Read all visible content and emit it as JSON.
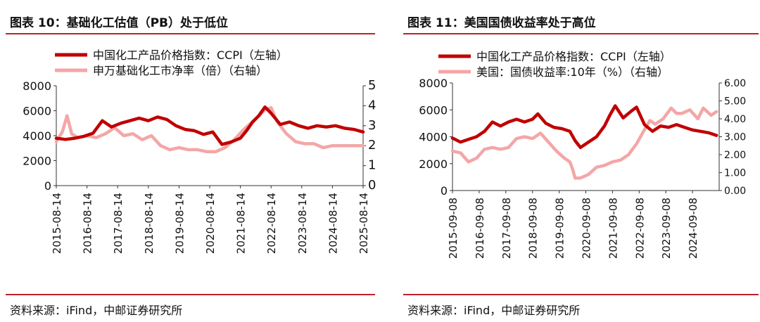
{
  "colors": {
    "accent": "#c0202a",
    "ccpi_line": "#c00000",
    "secondary_line": "#f4a6a6"
  },
  "left": {
    "title": "图表 10：基础化工估值（PB）处于低位",
    "source": "资料来源：iFind，中邮证券研究所"
  },
  "right": {
    "title": "图表 11：美国国债收益率处于高位",
    "source": "资料来源：iFind，中邮证券研究所"
  },
  "chart_data": [
    {
      "type": "line",
      "title": "图表 10：基础化工估值（PB）处于低位",
      "y_left": {
        "range": [
          0,
          8000
        ],
        "ticks": [
          "0",
          "2000",
          "4000",
          "6000",
          "8000"
        ]
      },
      "y_right": {
        "range": [
          0,
          5
        ],
        "ticks": [
          "0",
          "1",
          "2",
          "3",
          "4",
          "5"
        ]
      },
      "x_ticks": [
        "2015-08-14",
        "2016-08-14",
        "2017-08-14",
        "2018-08-14",
        "2019-08-14",
        "2020-08-14",
        "2021-08-14",
        "2022-08-14",
        "2023-08-14",
        "2024-08-14",
        "2025-08-14"
      ],
      "series": [
        {
          "name": "中国化工产品价格指数：CCPI（左轴）",
          "axis": "left",
          "x": [
            0,
            0.3,
            0.6,
            0.9,
            1.2,
            1.5,
            1.8,
            2.1,
            2.4,
            2.7,
            3.0,
            3.3,
            3.6,
            3.9,
            4.2,
            4.5,
            4.8,
            5.1,
            5.4,
            5.7,
            6.0,
            6.2,
            6.4,
            6.6,
            6.8,
            7.0,
            7.3,
            7.6,
            7.9,
            8.2,
            8.5,
            8.8,
            9.1,
            9.4,
            9.7,
            10.0
          ],
          "values": [
            3800,
            3700,
            3800,
            3950,
            4200,
            5200,
            4700,
            5000,
            5200,
            5400,
            5200,
            5500,
            5300,
            4800,
            4500,
            4400,
            4100,
            4300,
            3300,
            3500,
            3800,
            4400,
            5100,
            5600,
            6300,
            5800,
            4900,
            5100,
            4800,
            4600,
            4800,
            4700,
            4800,
            4600,
            4500,
            4300
          ]
        },
        {
          "name": "申万基础化工市净率（倍）（右轴）",
          "axis": "right",
          "x": [
            0,
            0.2,
            0.35,
            0.5,
            0.7,
            1.0,
            1.3,
            1.6,
            1.9,
            2.2,
            2.5,
            2.8,
            3.1,
            3.4,
            3.7,
            4.0,
            4.3,
            4.6,
            4.9,
            5.2,
            5.5,
            5.8,
            6.1,
            6.4,
            6.6,
            6.8,
            7.0,
            7.2,
            7.5,
            7.8,
            8.1,
            8.4,
            8.7,
            9.0,
            9.3,
            9.6,
            10.0
          ],
          "values": [
            2.2,
            2.7,
            3.5,
            2.6,
            2.4,
            2.5,
            2.4,
            2.6,
            2.9,
            2.5,
            2.6,
            2.3,
            2.5,
            2.0,
            1.8,
            1.9,
            1.8,
            1.8,
            1.7,
            1.7,
            1.9,
            2.3,
            2.8,
            3.2,
            3.5,
            3.8,
            3.9,
            3.2,
            2.6,
            2.2,
            2.1,
            2.1,
            1.9,
            2.0,
            2.0,
            2.0,
            2.0
          ]
        }
      ]
    },
    {
      "type": "line",
      "title": "图表 11：美国国债收益率处于高位",
      "y_left": {
        "range": [
          0,
          8000
        ],
        "ticks": [
          "0",
          "2000",
          "4000",
          "6000",
          "8000"
        ]
      },
      "y_right": {
        "range": [
          0,
          6
        ],
        "ticks": [
          "0.00",
          "1.00",
          "2.00",
          "3.00",
          "4.00",
          "5.00",
          "6.00"
        ]
      },
      "x_ticks": [
        "2015-09-08",
        "2016-09-08",
        "2017-09-08",
        "2018-09-08",
        "2019-09-08",
        "2020-09-08",
        "2021-09-08",
        "2022-09-08",
        "2023-09-08",
        "2024-09-08"
      ],
      "series": [
        {
          "name": "中国化工产品价格指数：CCPI（左轴）",
          "axis": "left",
          "x": [
            0,
            0.3,
            0.6,
            0.9,
            1.2,
            1.5,
            1.8,
            2.1,
            2.4,
            2.7,
            3.0,
            3.2,
            3.5,
            3.8,
            4.1,
            4.4,
            4.6,
            4.8,
            5.1,
            5.4,
            5.7,
            5.9,
            6.1,
            6.4,
            6.7,
            6.9,
            7.2,
            7.5,
            7.8,
            8.1,
            8.4,
            8.7,
            9.0,
            9.3,
            9.6,
            9.9
          ],
          "values": [
            3900,
            3600,
            3800,
            4000,
            4400,
            5100,
            4800,
            5100,
            5300,
            5100,
            5300,
            5700,
            5000,
            4700,
            4600,
            4400,
            3700,
            3200,
            3600,
            4000,
            4800,
            5600,
            6300,
            5400,
            5900,
            6200,
            4900,
            4400,
            4800,
            4700,
            4900,
            4700,
            4500,
            4400,
            4300,
            4100
          ]
        },
        {
          "name": "美国：国债收益率:10年（%）（右轴）",
          "axis": "right",
          "x": [
            0,
            0.3,
            0.6,
            0.9,
            1.2,
            1.5,
            1.8,
            2.1,
            2.4,
            2.7,
            3.0,
            3.3,
            3.6,
            3.9,
            4.2,
            4.4,
            4.5,
            4.6,
            4.8,
            5.1,
            5.4,
            5.7,
            6.0,
            6.3,
            6.6,
            6.9,
            7.2,
            7.4,
            7.6,
            7.9,
            8.2,
            8.4,
            8.6,
            8.9,
            9.2,
            9.4,
            9.7,
            9.9
          ],
          "values": [
            2.2,
            2.1,
            1.6,
            1.8,
            2.3,
            2.4,
            2.3,
            2.4,
            2.9,
            3.0,
            2.9,
            3.2,
            2.7,
            2.2,
            1.8,
            1.6,
            1.2,
            0.7,
            0.7,
            0.9,
            1.3,
            1.4,
            1.6,
            1.7,
            2.0,
            2.6,
            3.4,
            3.9,
            3.7,
            4.0,
            4.6,
            4.3,
            4.3,
            4.5,
            4.0,
            4.6,
            4.2,
            4.4
          ]
        }
      ]
    }
  ]
}
